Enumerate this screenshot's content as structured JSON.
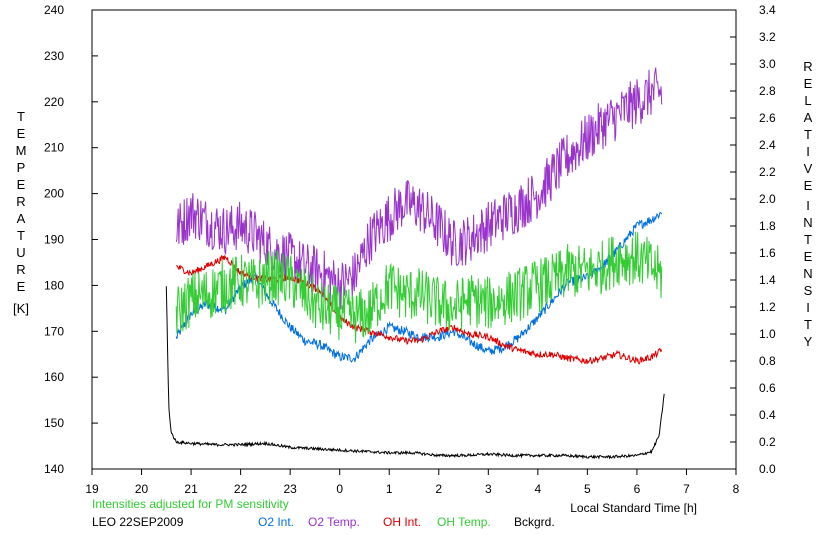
{
  "chart_data": {
    "type": "line",
    "x_axis": {
      "label": "Local Standard Time [h]",
      "min": 19,
      "max": 32,
      "ticks": [
        19,
        20,
        21,
        22,
        23,
        24,
        25,
        26,
        27,
        28,
        29,
        30,
        31,
        32
      ],
      "tick_labels": [
        "19",
        "20",
        "21",
        "22",
        "23",
        "0",
        "1",
        "2",
        "3",
        "4",
        "5",
        "6",
        "7",
        "8"
      ]
    },
    "y_left": {
      "label_letters": [
        "T",
        "E",
        "M",
        "P",
        "E",
        "R",
        "A",
        "T",
        "U",
        "R",
        "E"
      ],
      "unit": "[K]",
      "min": 140,
      "max": 240,
      "ticks": [
        140,
        150,
        160,
        170,
        180,
        190,
        200,
        210,
        220,
        230,
        240
      ]
    },
    "y_right": {
      "label_letters_1": [
        "R",
        "E",
        "L",
        "A",
        "T",
        "I",
        "V",
        "E"
      ],
      "label_letters_2": [
        "I",
        "N",
        "T",
        "E",
        "N",
        "S",
        "I",
        "T",
        "Y"
      ],
      "min": 0,
      "max": 3.4,
      "ticks": [
        0,
        0.2,
        0.4,
        0.6,
        0.8,
        1.0,
        1.2,
        1.4,
        1.6,
        1.8,
        2.0,
        2.2,
        2.4,
        2.6,
        2.8,
        3.0,
        3.2,
        3.4
      ],
      "tick_labels": [
        "0.0",
        "0.2",
        "0.4",
        "0.6",
        "0.8",
        "1.0",
        "1.2",
        "1.4",
        "1.6",
        "1.8",
        "2.0",
        "2.2",
        "2.4",
        "2.6",
        "2.8",
        "3.0",
        "3.2",
        "3.4"
      ]
    },
    "note": "Intensities adjusted for PM sensitivity",
    "station": "LEO 22SEP2009",
    "series": [
      {
        "name": "O2 Int.",
        "axis": "right",
        "color": "#0070e0",
        "noise": 0.035,
        "x": [
          20.7,
          21.0,
          21.3,
          21.7,
          22.0,
          22.3,
          22.6,
          23.0,
          23.3,
          23.6,
          24.0,
          24.3,
          24.6,
          25.0,
          25.3,
          25.6,
          26.0,
          26.3,
          26.6,
          27.0,
          27.3,
          27.6,
          28.0,
          28.3,
          28.6,
          29.0,
          29.3,
          29.6,
          30.0,
          30.3,
          30.5
        ],
        "y": [
          0.97,
          1.15,
          1.22,
          1.18,
          1.35,
          1.42,
          1.25,
          1.05,
          0.95,
          0.92,
          0.83,
          0.82,
          0.95,
          1.05,
          1.02,
          0.98,
          0.98,
          1.02,
          0.95,
          0.87,
          0.9,
          0.97,
          1.12,
          1.25,
          1.38,
          1.42,
          1.5,
          1.62,
          1.8,
          1.85,
          1.9
        ]
      },
      {
        "name": "O2 Temp.",
        "axis": "left",
        "color": "#9933cc",
        "noise": 5.5,
        "x": [
          20.7,
          21.0,
          21.3,
          21.7,
          22.0,
          22.3,
          22.6,
          23.0,
          23.3,
          23.6,
          24.0,
          24.3,
          24.6,
          25.0,
          25.3,
          25.6,
          26.0,
          26.3,
          26.6,
          27.0,
          27.3,
          27.6,
          28.0,
          28.3,
          28.6,
          29.0,
          29.3,
          29.6,
          30.0,
          30.3,
          30.5
        ],
        "y": [
          192,
          196,
          194,
          192,
          193,
          191,
          188,
          186,
          184,
          183,
          180,
          182,
          190,
          195,
          198,
          197,
          193,
          189,
          190,
          193,
          195,
          197,
          200,
          204,
          208,
          212,
          215,
          217,
          220,
          222,
          222
        ]
      },
      {
        "name": "OH Int.",
        "axis": "right",
        "color": "#dd0000",
        "noise": 0.025,
        "x": [
          20.7,
          21.0,
          21.3,
          21.7,
          22.0,
          22.3,
          22.6,
          23.0,
          23.3,
          23.6,
          24.0,
          24.3,
          24.6,
          25.0,
          25.3,
          25.6,
          26.0,
          26.3,
          26.6,
          27.0,
          27.3,
          27.6,
          28.0,
          28.3,
          28.6,
          29.0,
          29.3,
          29.6,
          30.0,
          30.3,
          30.5
        ],
        "y": [
          1.5,
          1.45,
          1.5,
          1.57,
          1.45,
          1.42,
          1.4,
          1.42,
          1.38,
          1.32,
          1.12,
          1.05,
          1.02,
          0.98,
          0.95,
          0.95,
          1.02,
          1.05,
          1.0,
          0.98,
          0.92,
          0.88,
          0.85,
          0.85,
          0.82,
          0.8,
          0.82,
          0.85,
          0.8,
          0.83,
          0.88
        ]
      },
      {
        "name": "OH Temp.",
        "axis": "left",
        "color": "#33cc33",
        "noise": 6,
        "x": [
          20.7,
          21.0,
          21.3,
          21.7,
          22.0,
          22.3,
          22.6,
          23.0,
          23.3,
          23.6,
          24.0,
          24.3,
          24.6,
          25.0,
          25.3,
          25.6,
          26.0,
          26.3,
          26.6,
          27.0,
          27.3,
          27.6,
          28.0,
          28.3,
          28.6,
          29.0,
          29.3,
          29.6,
          30.0,
          30.3,
          30.5
        ],
        "y": [
          174,
          177,
          178,
          180,
          181,
          180,
          182,
          181,
          178,
          175,
          174,
          173,
          174,
          180,
          178,
          178,
          176,
          175,
          177,
          176,
          177,
          178,
          180,
          181,
          183,
          183,
          184,
          186,
          186,
          184,
          182
        ]
      },
      {
        "name": "Bckgrd.",
        "axis": "right",
        "color": "#000000",
        "noise": 0.01,
        "x": [
          20.5,
          20.55,
          20.6,
          20.7,
          21.0,
          21.5,
          22.0,
          22.5,
          23.0,
          23.5,
          24.0,
          24.5,
          25.0,
          25.5,
          26.0,
          26.5,
          27.0,
          27.5,
          28.0,
          28.5,
          29.0,
          29.5,
          30.0,
          30.3,
          30.45,
          30.55
        ],
        "y": [
          1.36,
          0.45,
          0.27,
          0.2,
          0.19,
          0.18,
          0.18,
          0.19,
          0.16,
          0.15,
          0.14,
          0.13,
          0.12,
          0.12,
          0.1,
          0.1,
          0.11,
          0.1,
          0.1,
          0.1,
          0.09,
          0.09,
          0.1,
          0.13,
          0.25,
          0.55
        ]
      }
    ]
  }
}
